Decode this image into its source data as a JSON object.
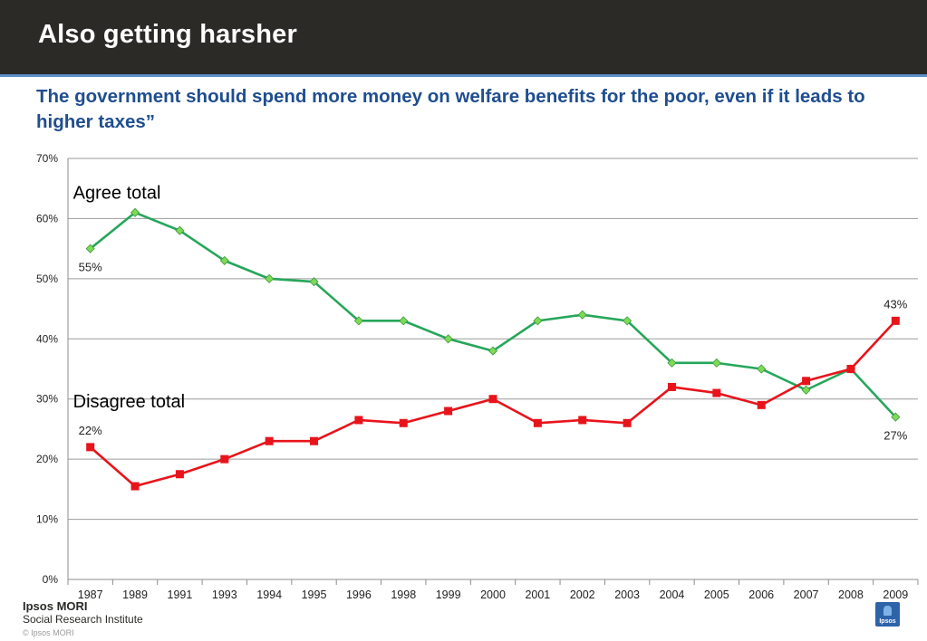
{
  "header": {
    "title": "Also getting harsher"
  },
  "subtitle": "The government should spend more money on welfare benefits for the poor, even if it leads to higher taxes”",
  "chart_data": {
    "type": "line",
    "title": "",
    "xlabel": "",
    "ylabel": "",
    "categories": [
      "1987",
      "1989",
      "1991",
      "1993",
      "1994",
      "1995",
      "1996",
      "1998",
      "1999",
      "2000",
      "2001",
      "2002",
      "2003",
      "2004",
      "2005",
      "2006",
      "2007",
      "2008",
      "2009"
    ],
    "ylim": [
      0,
      70
    ],
    "yticks": [
      "0%",
      "10%",
      "20%",
      "30%",
      "40%",
      "50%",
      "60%",
      "70%"
    ],
    "grid": true,
    "series": [
      {
        "name": "Agree total",
        "color": "#26a65b",
        "marker": "diamond",
        "marker_color": "#7ed957",
        "values": [
          55,
          61,
          58,
          53,
          50,
          49.5,
          43,
          43,
          40,
          38,
          43,
          44,
          43,
          36,
          36,
          35,
          31.5,
          35,
          27
        ]
      },
      {
        "name": "Disagree total",
        "color": "#e8141b",
        "marker": "square",
        "marker_color": "#e8141b",
        "values": [
          22,
          15.5,
          17.5,
          20,
          23,
          23,
          26.5,
          26,
          28,
          30,
          26,
          26.5,
          26,
          32,
          31,
          29,
          33,
          35,
          43
        ]
      }
    ],
    "annotations": [
      {
        "series": 0,
        "index": 0,
        "text": "55%"
      },
      {
        "series": 1,
        "index": 0,
        "text": "22%"
      },
      {
        "series": 1,
        "index": 18,
        "text": "43%"
      },
      {
        "series": 0,
        "index": 18,
        "text": "27%"
      }
    ]
  },
  "footer": {
    "brand": "Ipsos MORI",
    "unit": "Social Research Institute",
    "copyright": "© Ipsos MORI",
    "logo_text": "Ipsos"
  }
}
